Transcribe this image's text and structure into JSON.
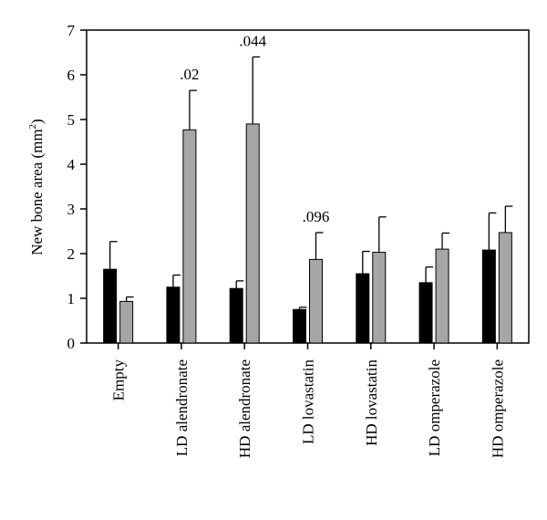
{
  "chart_data": {
    "type": "bar",
    "title": "",
    "xlabel": "",
    "ylabel": "New bone area (mm",
    "ylabel_sup": "2",
    "ylabel_close": ")",
    "ylim": [
      0,
      7
    ],
    "yticks": [
      "0",
      "1",
      "2",
      "3",
      "4",
      "5",
      "6",
      "7"
    ],
    "categories": [
      "Empty",
      "LD alendronate",
      "HD alendronate",
      "LD lovastatin",
      "HD lovastatin",
      "LD omperazole",
      "HD omperazole"
    ],
    "series": [
      {
        "color": "#000000",
        "values": [
          1.65,
          1.25,
          1.22,
          0.75,
          1.55,
          1.35,
          2.08
        ],
        "errors": [
          0.62,
          0.27,
          0.17,
          0.05,
          0.5,
          0.35,
          0.83
        ]
      },
      {
        "color": "#a6a6a6",
        "values": [
          0.93,
          4.77,
          4.9,
          1.87,
          2.03,
          2.1,
          2.47
        ],
        "errors": [
          0.1,
          0.88,
          1.5,
          0.6,
          0.79,
          0.36,
          0.59
        ]
      }
    ],
    "annotations": [
      {
        "category": 1,
        "series": 1,
        "text": ".02"
      },
      {
        "category": 2,
        "series": 1,
        "text": ".044"
      },
      {
        "category": 3,
        "series": 1,
        "text": ".096"
      }
    ],
    "grid": false,
    "legend": "none"
  }
}
